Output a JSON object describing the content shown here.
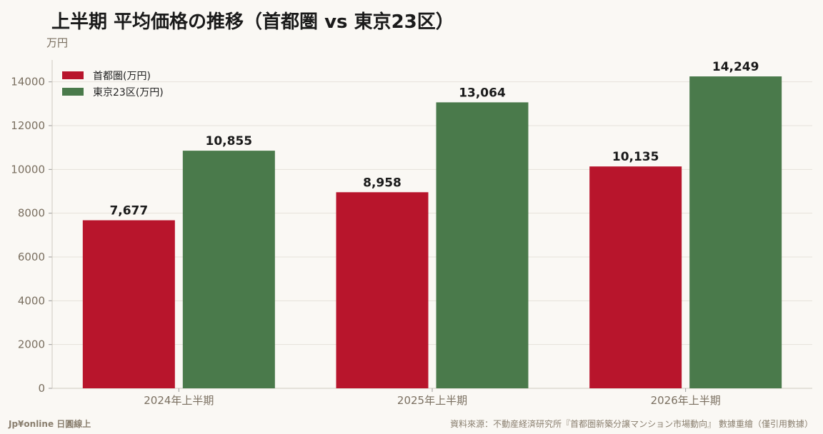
{
  "title": "上半期 平均価格の推移（首都圏 vs 東京23区）",
  "y_unit": "万円",
  "footer": {
    "brand": "Jp¥online 日圓線上",
    "source": "資料來源：不動産経済研究所『首都圏新築分譲マンション市場動向』 數據重繪（僅引用數據）"
  },
  "colors": {
    "metro": "#b8152c",
    "tokyo23": "#4a7a4b",
    "axis_text": "#7a6f60",
    "grid": "#e6e2da",
    "background": "#faf8f4"
  },
  "chart_data": {
    "type": "bar",
    "title": "上半期 平均価格の推移（首都圏 vs 東京23区）",
    "ylabel": "万円",
    "xlabel": "",
    "categories": [
      "2024年上半期",
      "2025年上半期",
      "2026年上半期"
    ],
    "series": [
      {
        "name": "首都圏(万円)",
        "values": [
          7677,
          8958,
          10135
        ],
        "labels": [
          "7,677",
          "8,958",
          "10,135"
        ],
        "color": "#b8152c"
      },
      {
        "name": "東京23区(万円)",
        "values": [
          10855,
          13064,
          14249
        ],
        "labels": [
          "10,855",
          "13,064",
          "14,249"
        ],
        "color": "#4a7a4b"
      }
    ],
    "ylim": [
      0,
      15000
    ],
    "yticks": [
      0,
      2000,
      4000,
      6000,
      8000,
      10000,
      12000,
      14000
    ],
    "ytick_labels": [
      "0",
      "2000",
      "4000",
      "6000",
      "8000",
      "10000",
      "12000",
      "14000"
    ],
    "grid": true,
    "legend_position": "top-left"
  }
}
